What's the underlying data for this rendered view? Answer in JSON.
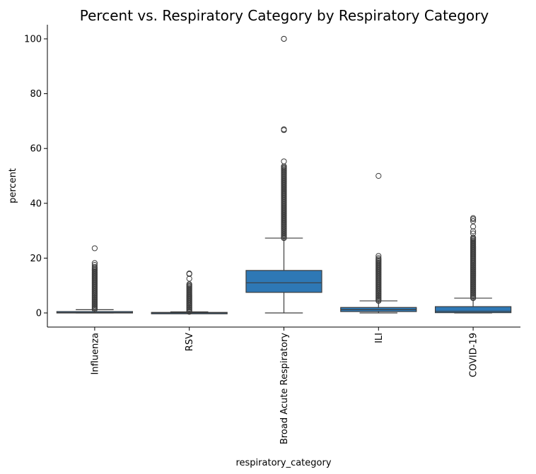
{
  "chart_data": {
    "type": "box",
    "title": "Percent vs. Respiratory Category by Respiratory Category",
    "xlabel": "respiratory_category",
    "ylabel": "percent",
    "ylim": [
      -5,
      105
    ],
    "yticks": [
      0,
      20,
      40,
      60,
      80,
      100
    ],
    "grid": false,
    "box_color": "#2e78b5",
    "line_color": "#3d3d3d",
    "categories": [
      "Influenza",
      "RSV",
      "Broad Acute Respiratory",
      "ILI",
      "COVID-19"
    ],
    "boxes": [
      {
        "category": "Influenza",
        "whisker_low": 0,
        "q1": 0.0,
        "median": 0.1,
        "q3": 0.5,
        "whisker_high": 1.2,
        "outliers": {
          "dense_range": [
            1.3,
            16.8
          ],
          "points": [
            17.5,
            18.2,
            23.6
          ]
        }
      },
      {
        "category": "RSV",
        "whisker_low": 0,
        "q1": 0.0,
        "median": 0.05,
        "q3": 0.2,
        "whisker_high": 0.4,
        "outliers": {
          "dense_range": [
            0.4,
            10.5
          ],
          "points": [
            12.5,
            14.2,
            14.4
          ]
        }
      },
      {
        "category": "Broad Acute Respiratory",
        "whisker_low": 0,
        "q1": 7.5,
        "median": 11.0,
        "q3": 15.5,
        "whisker_high": 27.3,
        "outliers": {
          "dense_range": [
            27.3,
            53.5
          ],
          "points": [
            55.3,
            66.7,
            67.0,
            100.0,
            100.0
          ]
        }
      },
      {
        "category": "ILI",
        "whisker_low": 0,
        "q1": 0.5,
        "median": 1.2,
        "q3": 2.0,
        "whisker_high": 4.4,
        "outliers": {
          "dense_range": [
            4.4,
            19.5
          ],
          "points": [
            20.0,
            20.8,
            50.0
          ]
        }
      },
      {
        "category": "COVID-19",
        "whisker_low": 0,
        "q1": 0.1,
        "median": 0.6,
        "q3": 2.3,
        "whisker_high": 5.4,
        "outliers": {
          "dense_range": [
            5.4,
            27.5
          ],
          "points": [
            29.0,
            29.8,
            31.5,
            33.5,
            34.2,
            34.6
          ]
        }
      }
    ]
  }
}
